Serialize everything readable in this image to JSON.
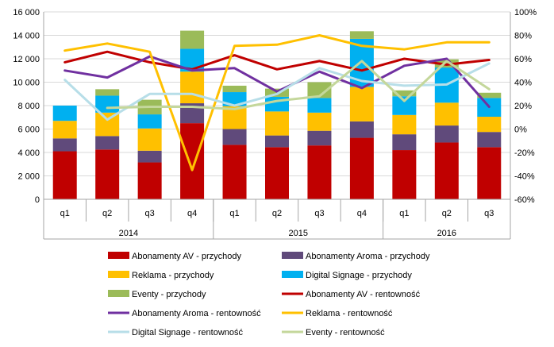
{
  "chart_data": {
    "type": "bar",
    "categories": [
      "q1",
      "q2",
      "q3",
      "q4",
      "q1",
      "q2",
      "q3",
      "q4",
      "q1",
      "q2",
      "q3"
    ],
    "groups": [
      {
        "label": "2014",
        "span": [
          0,
          3
        ]
      },
      {
        "label": "2015",
        "span": [
          4,
          7
        ]
      },
      {
        "label": "2016",
        "span": [
          8,
          10
        ]
      }
    ],
    "y_left": {
      "ylim": [
        0,
        16000
      ],
      "ticks": [
        0,
        2000,
        4000,
        6000,
        8000,
        10000,
        12000,
        14000,
        16000
      ],
      "tick_labels": [
        "0",
        "2 000",
        "4 000",
        "6 000",
        "8 000",
        "10 000",
        "12 000",
        "14 000",
        "16 000"
      ]
    },
    "y_right": {
      "ylim": [
        -60,
        100
      ],
      "ticks": [
        -60,
        -40,
        -20,
        0,
        20,
        40,
        60,
        80,
        100
      ],
      "tick_labels": [
        "-60%",
        "-40%",
        "-20%",
        "0%",
        "20%",
        "40%",
        "60%",
        "80%",
        "100%"
      ]
    },
    "grid": true,
    "legend_position": "bottom",
    "bar_series": [
      {
        "name": "Abonamenty AV - przychody",
        "color": "#c00000",
        "values": [
          4100,
          4250,
          3150,
          6500,
          4650,
          4450,
          4600,
          5250,
          4200,
          4850,
          4450
        ]
      },
      {
        "name": "Abonamenty Aroma - przychody",
        "color": "#604a7b",
        "values": [
          1100,
          1150,
          1000,
          1700,
          1350,
          1000,
          1250,
          1400,
          1350,
          1450,
          1300
        ]
      },
      {
        "name": "Reklama - przychody",
        "color": "#ffc000",
        "values": [
          1500,
          2000,
          1900,
          2700,
          1950,
          2050,
          1550,
          2950,
          1650,
          1950,
          1300
        ]
      },
      {
        "name": "Digital Signage - przychody",
        "color": "#00b0f0",
        "values": [
          1300,
          1450,
          1200,
          1950,
          1200,
          1250,
          1250,
          4100,
          1600,
          3000,
          1600
        ]
      },
      {
        "name": "Eventy - przychody",
        "color": "#9bbb59",
        "values": [
          0,
          550,
          1250,
          1550,
          550,
          700,
          1350,
          650,
          500,
          700,
          450
        ]
      }
    ],
    "line_series": [
      {
        "name": "Abonamenty AV - rentowność",
        "color": "#c00000",
        "values": [
          57,
          66,
          57,
          51,
          63,
          51,
          58,
          50,
          60,
          55,
          59
        ]
      },
      {
        "name": "Abonamenty Aroma - rentowność",
        "color": "#7030a0",
        "values": [
          50,
          44,
          62,
          50,
          52,
          32,
          49,
          35,
          54,
          60,
          19
        ]
      },
      {
        "name": "Reklama - rentowność",
        "color": "#ffc000",
        "values": [
          67,
          73,
          66,
          -35,
          71,
          72,
          80,
          71,
          68,
          74,
          74
        ]
      },
      {
        "name": "Digital Signage - rentowność",
        "color": "#b7dee8",
        "values": [
          42,
          8,
          30,
          30,
          20,
          30,
          52,
          41,
          37,
          38,
          56
        ]
      },
      {
        "name": "Eventy - rentowność",
        "color": "#c4d79b",
        "values": [
          null,
          18,
          19,
          19,
          17,
          24,
          28,
          58,
          24,
          58,
          34
        ]
      }
    ]
  }
}
